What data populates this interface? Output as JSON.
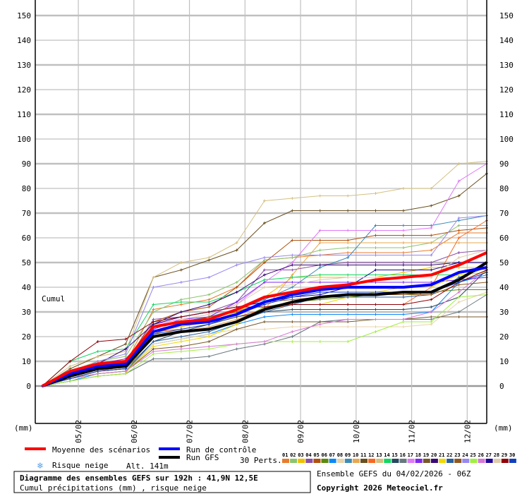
{
  "chart_data": {
    "type": "line",
    "title": "Diagramme des ensembles GEFS sur 192h : 41,9N 12,5E",
    "subtitle": "Cumul précipitations (mm) , risque neige",
    "run_info": "Ensemble GEFS du 04/02/2026 - 06Z",
    "copyright": "Copyright 2026 Meteociel.fr",
    "ylabel": "(mm)",
    "series_label": "Cumul",
    "altitude": "Alt. 141m",
    "ylim": [
      0,
      150
    ],
    "yticks": [
      0,
      10,
      20,
      30,
      40,
      50,
      60,
      70,
      80,
      90,
      100,
      110,
      120,
      130,
      140,
      150
    ],
    "x_hours": [
      0,
      12,
      24,
      36,
      48,
      60,
      72,
      84,
      96,
      108,
      120,
      132,
      144,
      156,
      168,
      180,
      192
    ],
    "date_ticks": [
      {
        "label": "05/02",
        "hour": 18
      },
      {
        "label": "06/02",
        "hour": 42
      },
      {
        "label": "07/02",
        "hour": 66
      },
      {
        "label": "08/02",
        "hour": 90
      },
      {
        "label": "09/02",
        "hour": 114
      },
      {
        "label": "10/02",
        "hour": 138
      },
      {
        "label": "11/02",
        "hour": 162
      },
      {
        "label": "12/02",
        "hour": 186
      }
    ],
    "legend": {
      "mean": "Moyenne des scénarios",
      "control": "Run de contrôle",
      "gfs": "Run GFS",
      "snow": "Risque neige",
      "perts": "30 Perts."
    },
    "members": [
      {
        "name": "01",
        "color": "#e87b2c",
        "values": [
          0,
          5,
          8,
          9,
          31,
          33,
          35,
          40,
          51,
          52,
          53,
          54,
          54,
          54,
          55,
          62,
          62
        ]
      },
      {
        "name": "02",
        "color": "#8cc46c",
        "values": [
          0,
          6,
          10,
          12,
          30,
          35,
          37,
          42,
          51,
          52,
          55,
          56,
          56,
          56,
          58,
          65,
          65
        ]
      },
      {
        "name": "03",
        "color": "#f0c000",
        "values": [
          0,
          2,
          4,
          5,
          22,
          24,
          26,
          30,
          36,
          44,
          44,
          44,
          44,
          46,
          48,
          48,
          48
        ]
      },
      {
        "name": "04",
        "color": "#8c50a8",
        "values": [
          0,
          4,
          8,
          9,
          27,
          28,
          30,
          34,
          47,
          47,
          49,
          50,
          50,
          50,
          50,
          54,
          55
        ]
      },
      {
        "name": "05",
        "color": "#b0500c",
        "values": [
          0,
          5,
          9,
          10,
          26,
          30,
          32,
          40,
          50,
          59,
          59,
          59,
          61,
          61,
          61,
          63,
          64
        ]
      },
      {
        "name": "06",
        "color": "#5a8a0c",
        "values": [
          0,
          3,
          6,
          7,
          20,
          22,
          23,
          26,
          32,
          34,
          35,
          36,
          37,
          37,
          38,
          39,
          39
        ]
      },
      {
        "name": "07",
        "color": "#0a88f8",
        "values": [
          0,
          2,
          5,
          6,
          17,
          19,
          21,
          25,
          28,
          29,
          29,
          29,
          29,
          29,
          30,
          42,
          45
        ]
      },
      {
        "name": "08",
        "color": "#e8d4a8",
        "values": [
          0,
          3,
          5,
          6,
          17,
          19,
          21,
          23,
          23,
          24,
          24,
          24,
          24,
          24,
          25,
          34,
          38
        ]
      },
      {
        "name": "09",
        "color": "#3c8cb8",
        "values": [
          0,
          4,
          7,
          8,
          24,
          26,
          28,
          31,
          35,
          40,
          48,
          52,
          65,
          65,
          65,
          67,
          69
        ]
      },
      {
        "name": "10",
        "color": "#e8a850",
        "values": [
          0,
          3,
          6,
          7,
          20,
          22,
          24,
          27,
          31,
          45,
          58,
          58,
          58,
          58,
          58,
          58,
          58
        ]
      },
      {
        "name": "11",
        "color": "#6a5020",
        "values": [
          0,
          7,
          12,
          17,
          44,
          47,
          51,
          55,
          66,
          71,
          71,
          71,
          71,
          71,
          73,
          77,
          86
        ]
      },
      {
        "name": "12",
        "color": "#f86820",
        "values": [
          0,
          3,
          6,
          8,
          22,
          23,
          25,
          28,
          31,
          33,
          33,
          33,
          33,
          33,
          40,
          60,
          67
        ]
      },
      {
        "name": "13",
        "color": "#d4c080",
        "values": [
          0,
          8,
          12,
          14,
          44,
          50,
          52,
          58,
          75,
          76,
          77,
          77,
          78,
          80,
          80,
          90,
          91
        ]
      },
      {
        "name": "14",
        "color": "#10d860",
        "values": [
          0,
          10,
          14,
          15,
          33,
          34,
          34,
          38,
          43,
          44,
          45,
          45,
          45,
          45,
          45,
          45,
          46
        ]
      },
      {
        "name": "15",
        "color": "#284860",
        "values": [
          0,
          3,
          5,
          6,
          18,
          22,
          25,
          28,
          30,
          31,
          31,
          31,
          31,
          31,
          32,
          36,
          47
        ]
      },
      {
        "name": "16",
        "color": "#687880",
        "values": [
          0,
          2,
          4,
          5,
          11,
          11,
          12,
          15,
          17,
          20,
          26,
          27,
          27,
          27,
          27,
          30,
          37
        ]
      },
      {
        "name": "17",
        "color": "#e078f8",
        "values": [
          0,
          4,
          8,
          10,
          25,
          27,
          29,
          33,
          42,
          50,
          63,
          63,
          63,
          63,
          64,
          83,
          90
        ]
      },
      {
        "name": "18",
        "color": "#8028f0",
        "values": [
          0,
          4,
          9,
          11,
          23,
          27,
          28,
          34,
          42,
          42,
          42,
          42,
          42,
          42,
          42,
          43,
          44
        ]
      },
      {
        "name": "19",
        "color": "#785828",
        "values": [
          0,
          3,
          5,
          6,
          15,
          16,
          18,
          23,
          26,
          26,
          26,
          26,
          27,
          27,
          28,
          28,
          28
        ]
      },
      {
        "name": "20",
        "color": "#380878",
        "values": [
          0,
          5,
          9,
          15,
          25,
          30,
          33,
          38,
          45,
          49,
          49,
          49,
          49,
          49,
          49,
          50,
          50
        ]
      },
      {
        "name": "21",
        "color": "#f0d800",
        "values": [
          0,
          3,
          5,
          6,
          16,
          18,
          20,
          25,
          32,
          33,
          33,
          36,
          38,
          40,
          40,
          45,
          46
        ]
      },
      {
        "name": "22",
        "color": "#2860a0",
        "values": [
          0,
          3,
          6,
          7,
          18,
          20,
          22,
          26,
          30,
          33,
          36,
          36,
          36,
          36,
          37,
          44,
          48
        ]
      },
      {
        "name": "23",
        "color": "#905820",
        "values": [
          0,
          3,
          6,
          7,
          21,
          25,
          28,
          30,
          34,
          35,
          36,
          37,
          37,
          37,
          37,
          41,
          42
        ]
      },
      {
        "name": "24",
        "color": "#9888f0",
        "values": [
          0,
          5,
          10,
          13,
          40,
          42,
          44,
          49,
          52,
          53,
          53,
          53,
          53,
          53,
          53,
          68,
          69
        ]
      },
      {
        "name": "25",
        "color": "#a0f040",
        "values": [
          0,
          2,
          4,
          5,
          13,
          14,
          15,
          17,
          18,
          18,
          18,
          18,
          22,
          26,
          26,
          36,
          37
        ]
      },
      {
        "name": "26",
        "color": "#d878d8",
        "values": [
          0,
          3,
          5,
          6,
          14,
          15,
          16,
          17,
          18,
          22,
          25,
          27,
          27,
          27,
          30,
          38,
          47
        ]
      },
      {
        "name": "27",
        "color": "#200898",
        "values": [
          0,
          4,
          7,
          8,
          25,
          28,
          30,
          32,
          34,
          36,
          37,
          40,
          47,
          47,
          47,
          50,
          50
        ]
      },
      {
        "name": "28",
        "color": "#e0ccac",
        "values": [
          0,
          5,
          7,
          9,
          22,
          27,
          29,
          33,
          40,
          41,
          43,
          44,
          44,
          44,
          44,
          52,
          55
        ]
      },
      {
        "name": "29",
        "color": "#900008",
        "values": [
          0,
          10,
          18,
          19,
          26,
          28,
          30,
          32,
          32,
          33,
          33,
          33,
          33,
          33,
          35,
          42,
          47
        ]
      },
      {
        "name": "30",
        "color": "#1040c0",
        "values": [
          0,
          3,
          6,
          7,
          21,
          23,
          25,
          29,
          33,
          36,
          38,
          38,
          38,
          38,
          38,
          42,
          46
        ]
      }
    ],
    "mean": {
      "color": "#ff0000",
      "values": [
        0,
        6,
        9,
        10,
        24,
        26,
        27,
        31,
        36,
        38,
        40,
        41,
        43,
        44,
        45,
        49,
        54
      ]
    },
    "control": {
      "color": "#0000ff",
      "values": [
        0,
        5,
        8,
        9,
        22,
        25,
        26,
        29,
        34,
        37,
        39,
        40,
        40,
        40,
        41,
        46,
        48
      ]
    },
    "gfs": {
      "color": "#000000",
      "values": [
        0,
        4,
        7,
        8,
        20,
        22,
        23,
        26,
        31,
        34,
        36,
        37,
        37,
        38,
        38,
        43,
        50
      ]
    }
  }
}
